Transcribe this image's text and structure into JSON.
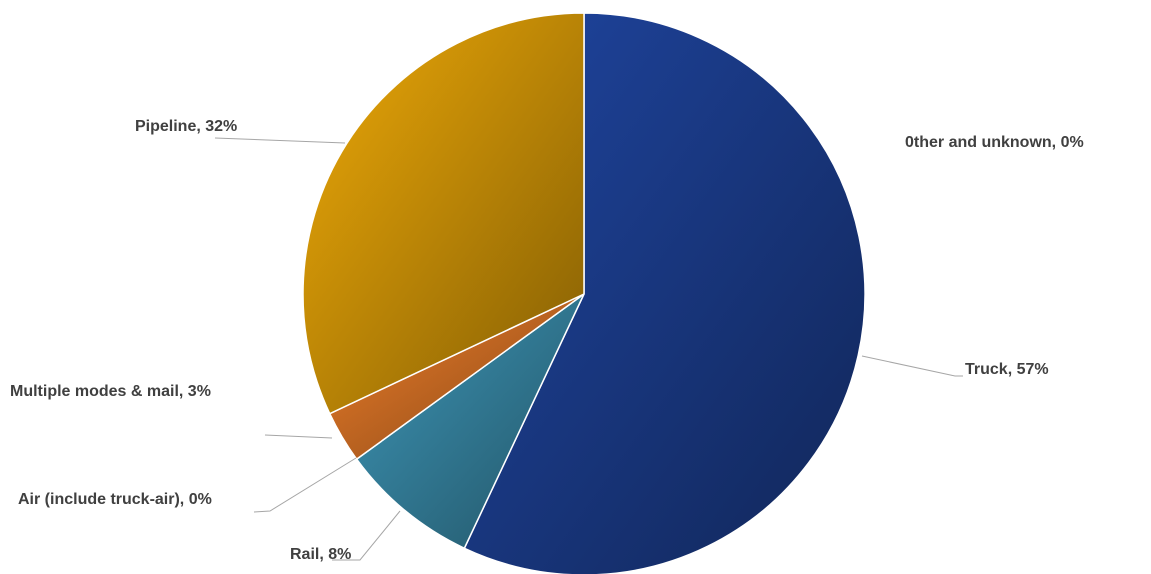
{
  "chart_data": {
    "type": "pie",
    "values": [
      57,
      8,
      0,
      3,
      32,
      0
    ],
    "value_labels": [
      "Truck, 57%",
      "Rail, 8%",
      "Air (include truck-air), 0%",
      "Multiple modes & mail, 3%",
      "Pipeline, 32%",
      "0ther and unknown, 0%"
    ],
    "colors": [
      "#1f45a0",
      "#3e97b8",
      "#5b9bd5",
      "#f07f2a",
      "#efaa08",
      "#7f7f7f"
    ]
  }
}
